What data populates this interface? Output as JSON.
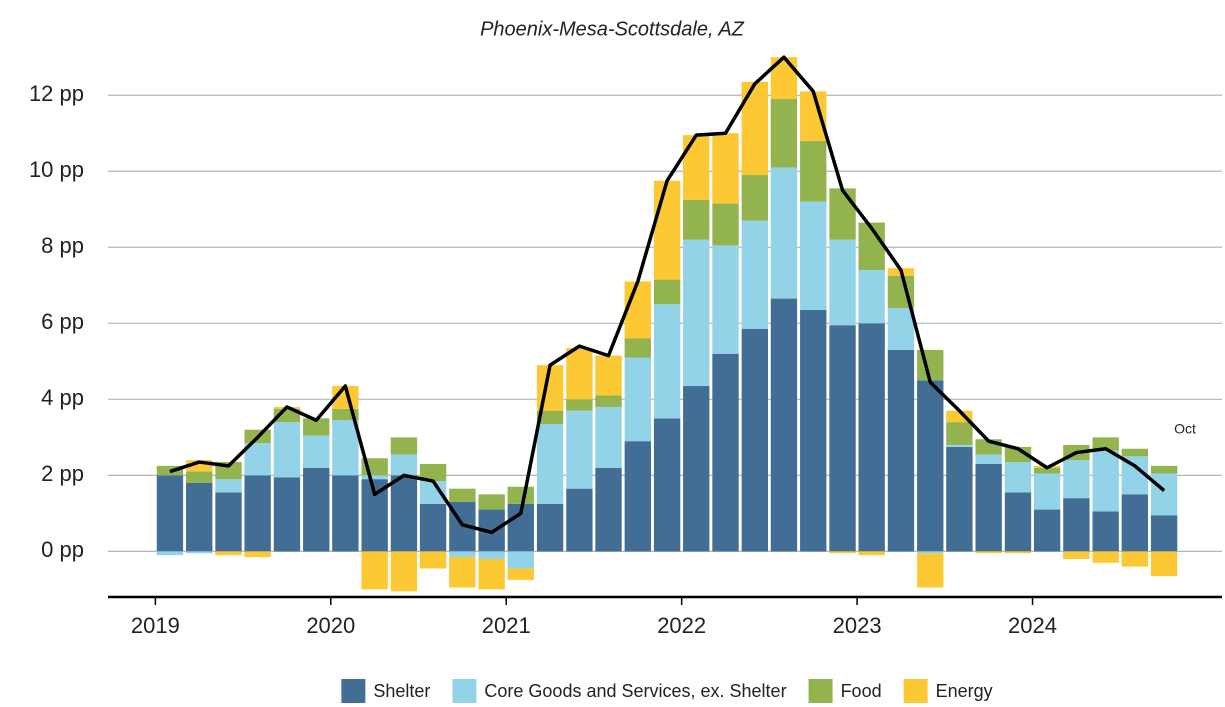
{
  "chart_data": {
    "type": "bar",
    "stacked": true,
    "title": "Phoenix-Mesa-Scottsdale, AZ",
    "x": [
      2019.083,
      2019.25,
      2019.417,
      2019.583,
      2019.75,
      2019.917,
      2020.083,
      2020.25,
      2020.417,
      2020.583,
      2020.75,
      2020.917,
      2021.083,
      2021.25,
      2021.417,
      2021.583,
      2021.75,
      2021.917,
      2022.083,
      2022.25,
      2022.417,
      2022.583,
      2022.75,
      2022.917,
      2023.083,
      2023.25,
      2023.417,
      2023.583,
      2023.75,
      2023.917,
      2024.083,
      2024.25,
      2024.417,
      2024.583,
      2024.75
    ],
    "series": [
      {
        "name": "Shelter",
        "color": "#426e96",
        "values": [
          2.0,
          1.8,
          1.55,
          2.0,
          1.95,
          2.2,
          2.0,
          1.9,
          2.0,
          1.25,
          1.3,
          1.1,
          1.25,
          1.25,
          1.65,
          2.2,
          2.9,
          3.5,
          4.35,
          5.2,
          5.85,
          6.65,
          6.35,
          5.95,
          6.0,
          5.3,
          4.5,
          2.75,
          2.3,
          1.55,
          1.1,
          1.4,
          1.05,
          1.5,
          0.95
        ]
      },
      {
        "name": "Core Goods and Services, ex. Shelter",
        "color": "#93d3e8",
        "values": [
          -0.1,
          -0.05,
          0.35,
          0.85,
          1.45,
          0.85,
          1.45,
          0.1,
          0.55,
          0.6,
          -0.15,
          -0.2,
          -0.45,
          2.1,
          2.05,
          1.6,
          2.2,
          3.0,
          3.85,
          2.85,
          2.85,
          3.45,
          2.85,
          2.25,
          1.4,
          1.1,
          -0.05,
          0.05,
          0.25,
          0.8,
          0.95,
          1.0,
          1.6,
          1.0,
          1.1
        ]
      },
      {
        "name": "Food",
        "color": "#93b34e",
        "values": [
          0.25,
          0.3,
          0.45,
          0.35,
          0.35,
          0.45,
          0.3,
          0.45,
          0.45,
          0.45,
          0.35,
          0.4,
          0.45,
          0.35,
          0.3,
          0.3,
          0.5,
          0.65,
          1.05,
          1.1,
          1.2,
          1.8,
          1.6,
          1.35,
          1.25,
          0.85,
          0.8,
          0.6,
          0.4,
          0.4,
          0.15,
          0.4,
          0.35,
          0.2,
          0.2
        ]
      },
      {
        "name": "Energy",
        "color": "#fcc834",
        "values": [
          0,
          0.3,
          -0.1,
          -0.15,
          0.05,
          0,
          0.6,
          -1.0,
          -1.05,
          -0.45,
          -0.8,
          -0.8,
          -0.3,
          1.2,
          1.35,
          1.05,
          1.5,
          2.6,
          1.7,
          1.85,
          2.45,
          1.1,
          1.3,
          -0.05,
          -0.1,
          0.2,
          -0.9,
          0.3,
          -0.05,
          -0.05,
          0.05,
          -0.2,
          -0.3,
          -0.4,
          -0.65
        ]
      }
    ],
    "line": {
      "color": "#000000",
      "values": [
        2.1,
        2.35,
        2.25,
        3.0,
        3.8,
        3.45,
        4.35,
        1.5,
        2.0,
        1.85,
        0.7,
        0.5,
        1.0,
        4.9,
        5.4,
        5.15,
        7.1,
        9.75,
        10.95,
        11.0,
        12.3,
        13.0,
        12.1,
        9.5,
        8.5,
        7.4,
        4.45,
        3.7,
        2.9,
        2.7,
        2.2,
        2.6,
        2.7,
        2.25,
        1.6
      ]
    },
    "annotation": "Oct",
    "xlim": [
      2018.73,
      2025.08
    ],
    "xticks": [
      2019,
      2020,
      2021,
      2022,
      2023,
      2024
    ],
    "ylim": [
      -1.2,
      13.4
    ],
    "yticks": [
      {
        "value": 0,
        "label": "0 pp"
      },
      {
        "value": 2,
        "label": "2 pp"
      },
      {
        "value": 4,
        "label": "4 pp"
      },
      {
        "value": 6,
        "label": "6 pp"
      },
      {
        "value": 8,
        "label": "8 pp"
      },
      {
        "value": 10,
        "label": "10 pp"
      },
      {
        "value": 12,
        "label": "12 pp"
      }
    ],
    "grid": true,
    "legend": "bottom"
  }
}
